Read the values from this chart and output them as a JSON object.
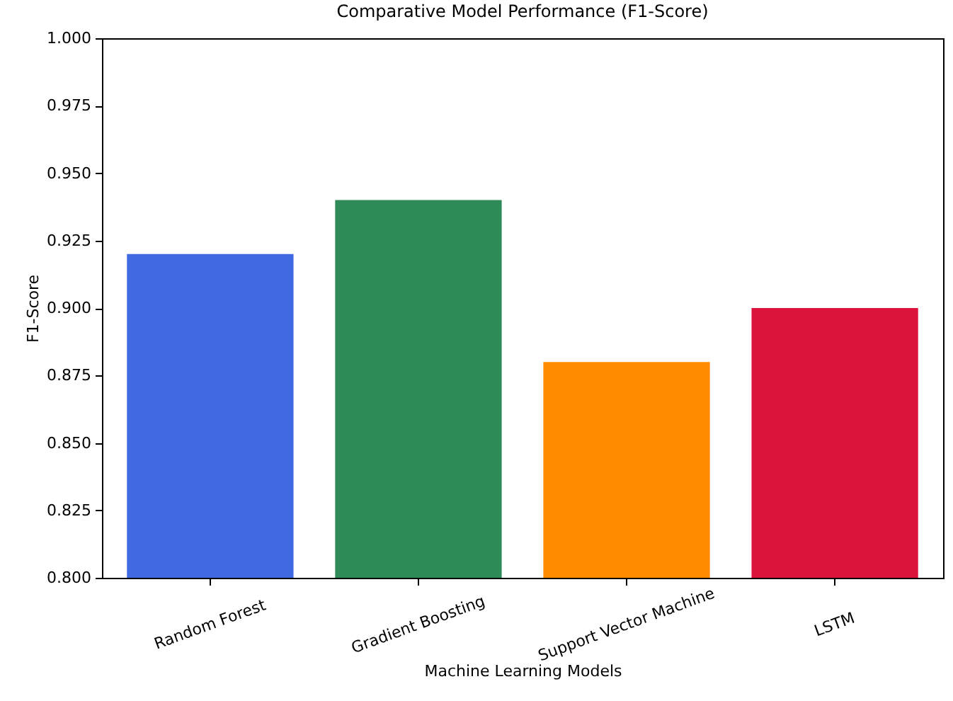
{
  "chart_data": {
    "type": "bar",
    "title": "Comparative Model Performance (F1-Score)",
    "xlabel": "Machine Learning Models",
    "ylabel": "F1-Score",
    "categories": [
      "Random Forest",
      "Gradient Boosting",
      "Support Vector Machine",
      "LSTM"
    ],
    "values": [
      0.92,
      0.94,
      0.88,
      0.9
    ],
    "colors": [
      "#4169e1",
      "#2e8b57",
      "#ff8c00",
      "#dc143c"
    ],
    "ylim": [
      0.8,
      1.0
    ],
    "yticks": [
      {
        "value": 0.8,
        "label": "0.800"
      },
      {
        "value": 0.825,
        "label": "0.825"
      },
      {
        "value": 0.85,
        "label": "0.850"
      },
      {
        "value": 0.875,
        "label": "0.875"
      },
      {
        "value": 0.9,
        "label": "0.900"
      },
      {
        "value": 0.925,
        "label": "0.925"
      },
      {
        "value": 0.95,
        "label": "0.950"
      },
      {
        "value": 0.975,
        "label": "0.975"
      },
      {
        "value": 1.0,
        "label": "1.000"
      }
    ],
    "grid": false
  }
}
